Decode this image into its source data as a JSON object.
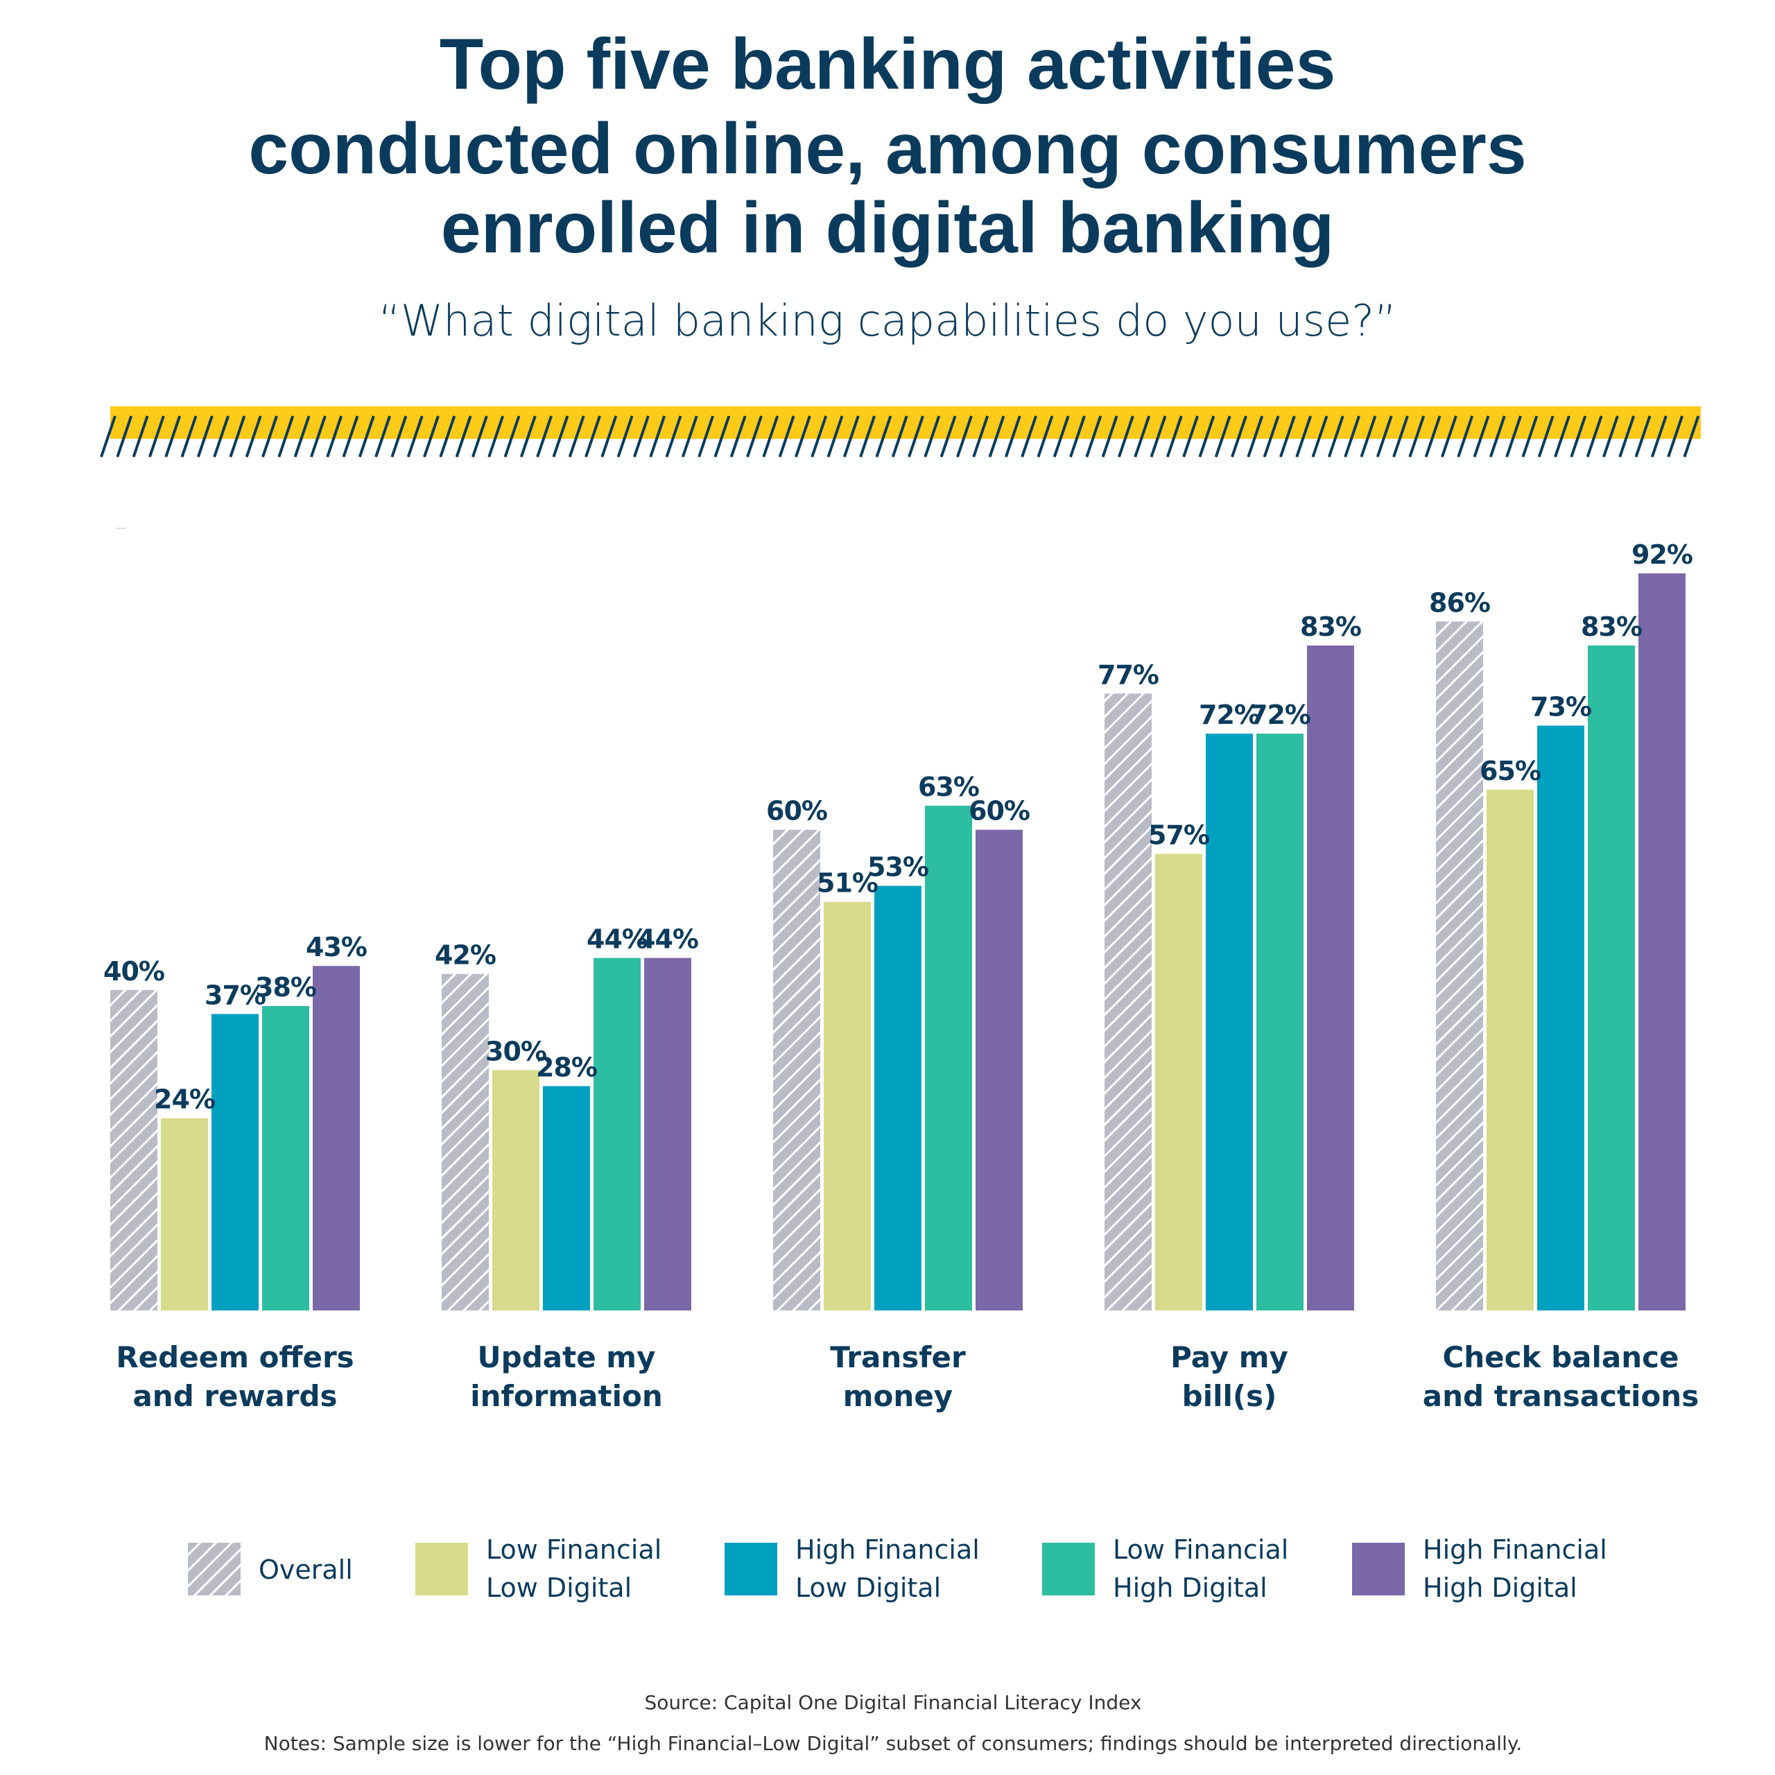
{
  "header": {
    "title_lines": [
      "Top five banking activities",
      "conducted online, among consumers",
      "enrolled in digital banking"
    ],
    "subtitle": "“What digital banking capabilities do you use?”"
  },
  "chart_data": {
    "type": "bar",
    "title": "Top five banking activities conducted online, among consumers enrolled in digital banking",
    "subtitle": "“What digital banking capabilities do you use?”",
    "categories": [
      [
        "Redeem offers",
        "and rewards"
      ],
      [
        "Update my",
        "information"
      ],
      [
        "Transfer",
        "money"
      ],
      [
        "Pay my",
        "bill(s)"
      ],
      [
        "Check balance",
        "and transactions"
      ]
    ],
    "series": [
      {
        "name": "Overall",
        "legend_lines": [
          "Overall"
        ],
        "color": "#b9bcc6",
        "pattern": "hatched",
        "values": [
          40,
          42,
          60,
          77,
          86
        ]
      },
      {
        "name": "Low Financial Low Digital",
        "legend_lines": [
          "Low Financial",
          "Low Digital"
        ],
        "color": "#d8da8c",
        "values": [
          24,
          30,
          51,
          57,
          65
        ]
      },
      {
        "name": "High Financial Low Digital",
        "legend_lines": [
          "High Financial",
          "Low Digital"
        ],
        "color": "#00a0c0",
        "values": [
          37,
          28,
          53,
          72,
          73
        ]
      },
      {
        "name": "Low Financial High Digital",
        "legend_lines": [
          "Low Financial",
          "High Digital"
        ],
        "color": "#2dbda0",
        "values": [
          38,
          44,
          63,
          72,
          83
        ]
      },
      {
        "name": "High Financial High Digital",
        "legend_lines": [
          "High Financial",
          "High Digital"
        ],
        "color": "#7b68a8",
        "values": [
          43,
          44,
          60,
          83,
          92
        ]
      }
    ],
    "value_suffix": "%",
    "ylim": [
      0,
      100
    ],
    "grid": false,
    "legend_position": "bottom"
  },
  "footer": {
    "source": "Source: Capital One Digital Financial Literacy Index",
    "notes": "Notes: Sample size is lower for the “High Financial–Low Digital” subset of consumers; findings should be interpreted directionally."
  },
  "colors": {
    "title": "#0b3b5c",
    "banner": "#fdca17"
  }
}
